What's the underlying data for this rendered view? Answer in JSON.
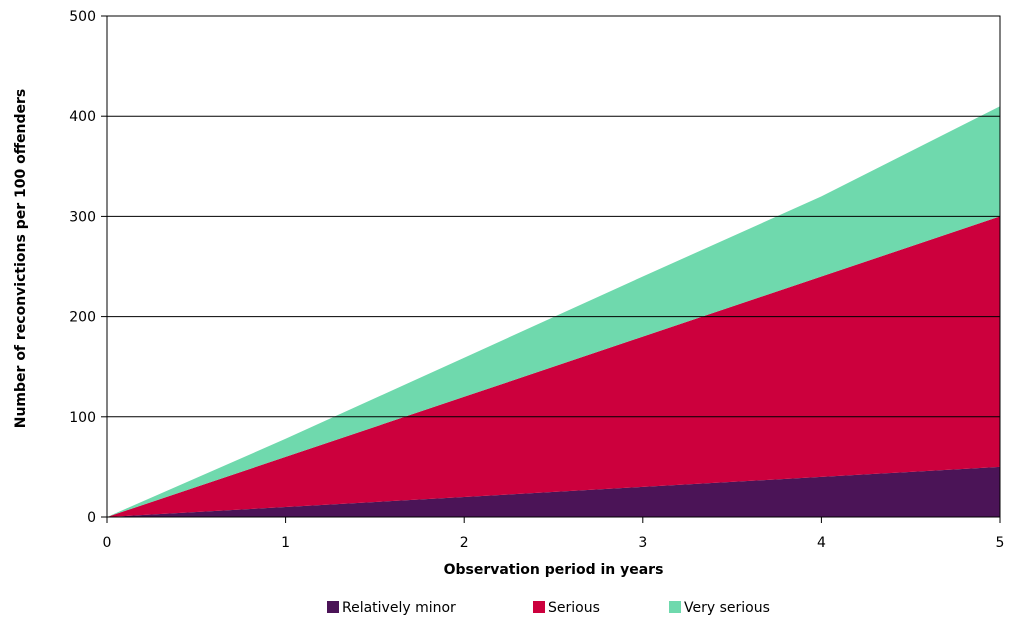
{
  "chart_data": {
    "type": "area",
    "stacked": true,
    "title": "",
    "xlabel": "Observation period in years",
    "ylabel": "Number of reconvictions per 100 offenders",
    "x": [
      0,
      1,
      2,
      3,
      4,
      5
    ],
    "xlim": [
      0,
      5
    ],
    "ylim": [
      0,
      500
    ],
    "xticks": [
      "0",
      "1",
      "2",
      "3",
      "4",
      "5"
    ],
    "yticks": [
      "0",
      "100",
      "200",
      "300",
      "400",
      "500"
    ],
    "grid": "horizontal",
    "legend_position": "bottom",
    "series": [
      {
        "name": "Relatively minor",
        "values": [
          0,
          10,
          20,
          30,
          40,
          50
        ],
        "color": "#4b1457"
      },
      {
        "name": "Serious",
        "values": [
          0,
          50,
          100,
          150,
          200,
          250
        ],
        "color": "#cc003d"
      },
      {
        "name": "Very serious",
        "values": [
          0,
          18,
          39,
          60,
          80,
          110
        ],
        "color": "#6fd9ad"
      }
    ]
  }
}
